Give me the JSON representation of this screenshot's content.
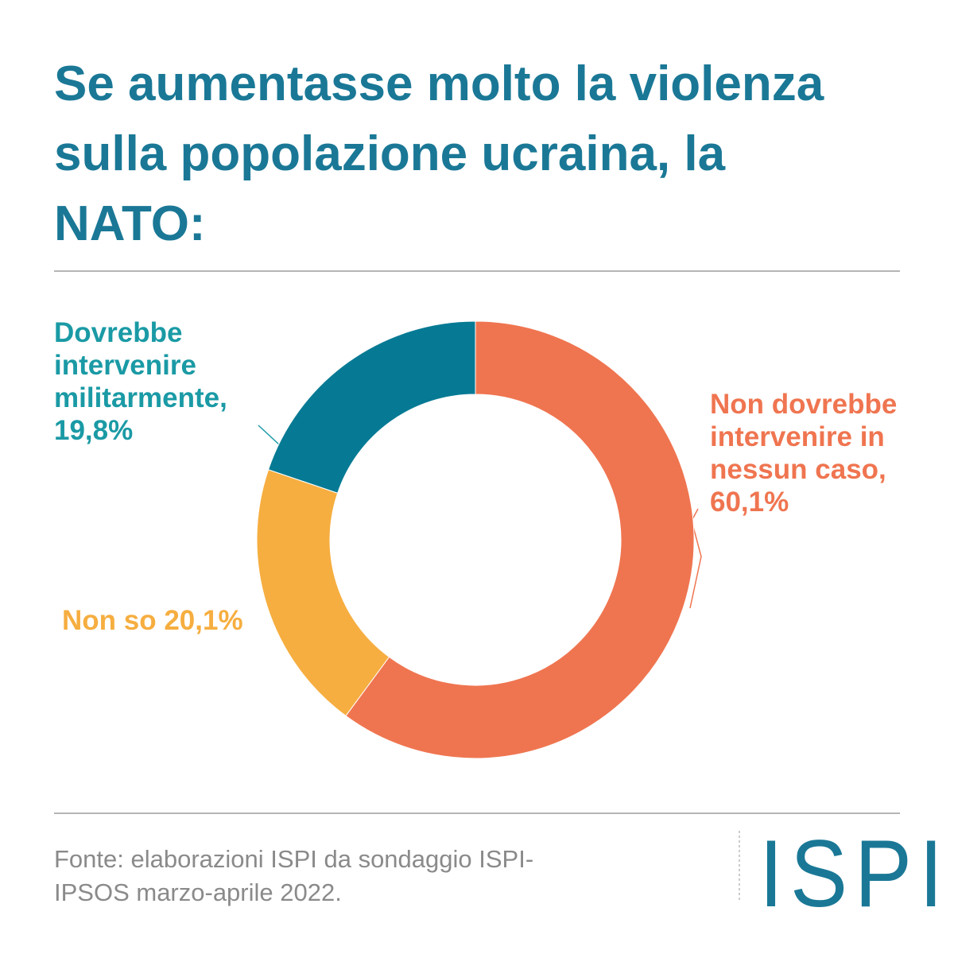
{
  "chart_data": {
    "type": "donut",
    "title": "Se aumentasse molto la violenza sulla popolazione ucraina, la NATO:",
    "categories": [
      "Non dovrebbe intervenire in nessun caso,",
      "Non so",
      "Dovrebbe intervenire militarmente,"
    ],
    "values": [
      60.1,
      20.1,
      19.8
    ],
    "value_labels": [
      "60,1%",
      "20,1%",
      "19,8%"
    ],
    "colors": [
      "#ef7550",
      "#f6ae40",
      "#067a94"
    ],
    "label_colors": [
      "#ef7550",
      "#f6ae40",
      "#1a9aa5"
    ],
    "source": "Fonte: elaborazioni ISPI da sondaggio ISPI-IPSOS marzo-aprile 2022.",
    "logo": "ISPI"
  }
}
